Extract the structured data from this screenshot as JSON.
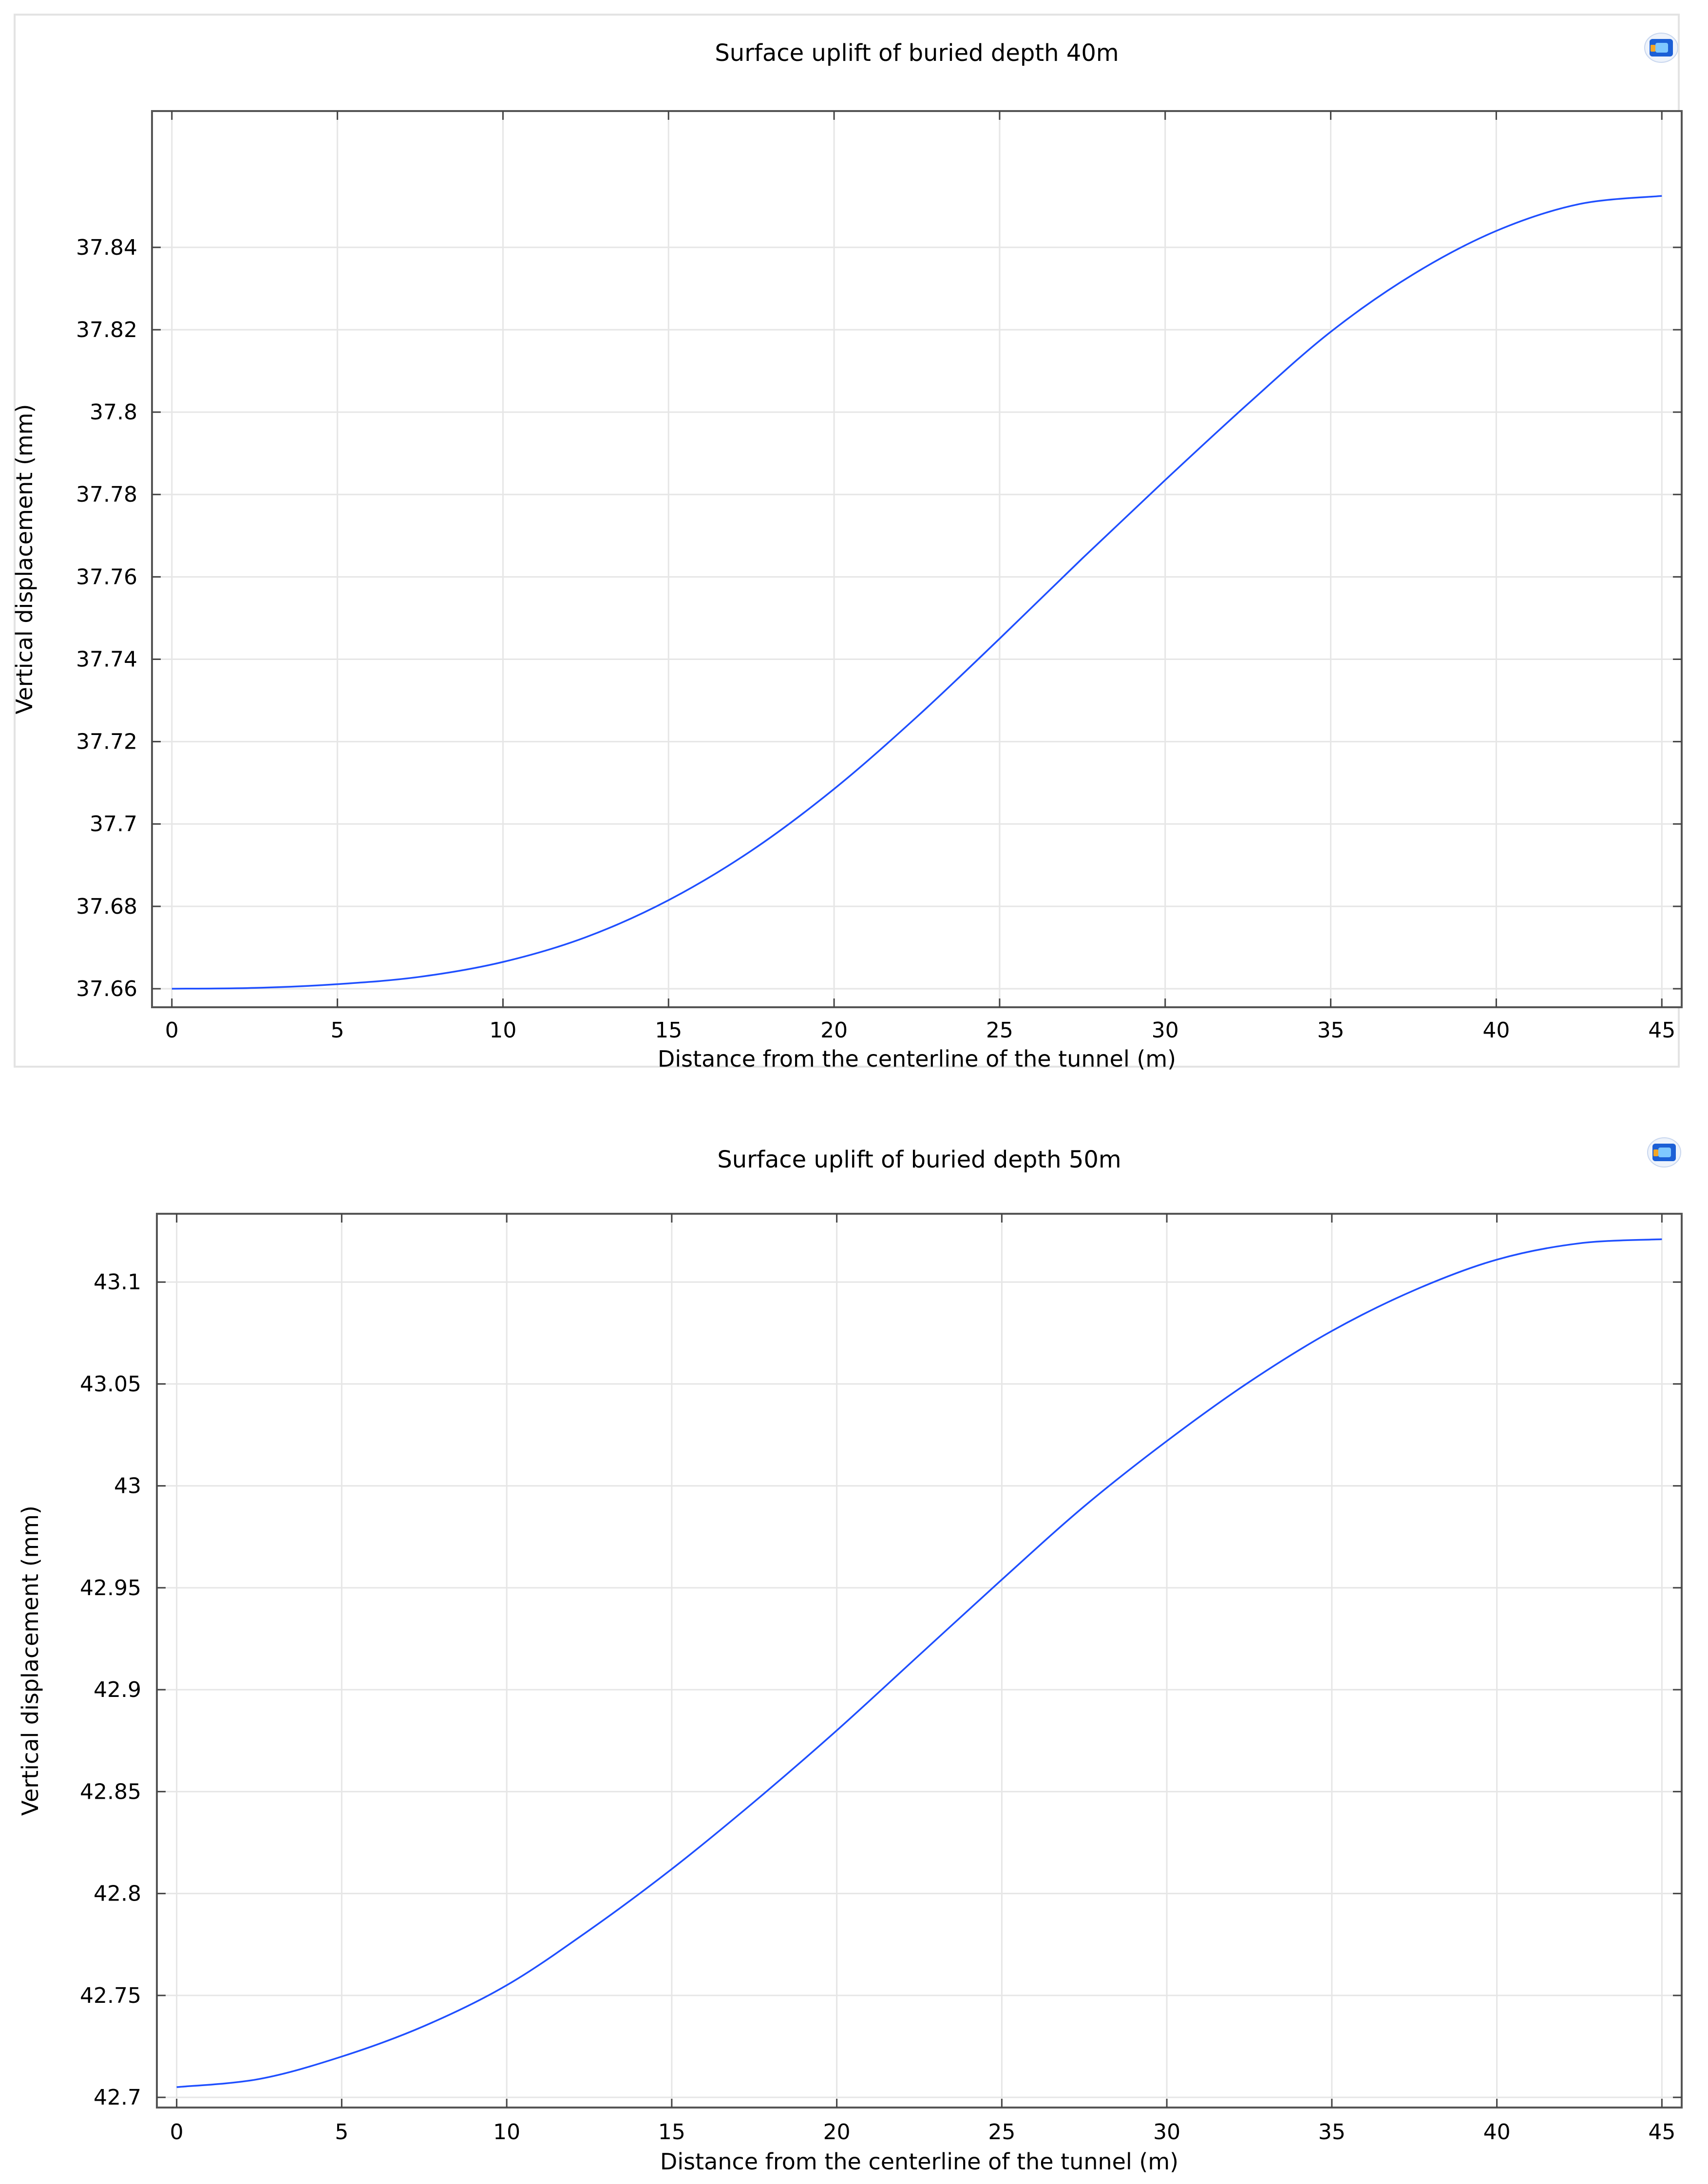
{
  "colors": {
    "line": "#1f4fff",
    "logo_outer": "#1b5fd6",
    "logo_inner": "#f5a623"
  },
  "chart_data": [
    {
      "type": "line",
      "title": "Surface uplift of buried depth 40m",
      "xlabel": "Distance from the centerline of the tunnel (m)",
      "ylabel": "Vertical displacement (mm)",
      "xlim": [
        -0.6,
        45.6
      ],
      "ylim": [
        37.6555,
        37.8731
      ],
      "x_ticks": [
        0,
        5,
        10,
        15,
        20,
        25,
        30,
        35,
        40,
        45
      ],
      "x_tick_labels": [
        "0",
        "5",
        "10",
        "15",
        "20",
        "25",
        "30",
        "35",
        "40",
        "45"
      ],
      "y_ticks": [
        37.66,
        37.68,
        37.7,
        37.72,
        37.74,
        37.76,
        37.78,
        37.8,
        37.82,
        37.84
      ],
      "y_tick_labels": [
        "37.66",
        "37.68",
        "37.7",
        "37.72",
        "37.74",
        "37.76",
        "37.78",
        "37.8",
        "37.82",
        "37.84"
      ],
      "grid": true,
      "logo_icon": "comsol-logo-icon",
      "series": [
        {
          "x": [
            0,
            2.5,
            5,
            7.5,
            10,
            12.5,
            15,
            17.5,
            20,
            22.5,
            25,
            27.5,
            30,
            32.5,
            35,
            37.5,
            40,
            42.5,
            45
          ],
          "y": [
            37.66,
            37.6602,
            37.6611,
            37.6629,
            37.6665,
            37.6725,
            37.6815,
            37.6935,
            37.7085,
            37.726,
            37.745,
            37.7645,
            37.7835,
            37.802,
            37.8195,
            37.8335,
            37.844,
            37.8505,
            37.8525
          ]
        }
      ]
    },
    {
      "type": "line",
      "title": "Surface uplift of buried depth 50m",
      "xlabel": "Distance from the centerline of the tunnel (m)",
      "ylabel": "Vertical displacement (mm)",
      "xlim": [
        -0.6,
        45.6
      ],
      "ylim": [
        42.695,
        43.1335
      ],
      "x_ticks": [
        0,
        5,
        10,
        15,
        20,
        25,
        30,
        35,
        40,
        45
      ],
      "x_tick_labels": [
        "0",
        "5",
        "10",
        "15",
        "20",
        "25",
        "30",
        "35",
        "40",
        "45"
      ],
      "y_ticks": [
        42.7,
        42.75,
        42.8,
        42.85,
        42.9,
        42.95,
        43.0,
        43.05,
        43.1
      ],
      "y_tick_labels": [
        "42.7",
        "42.75",
        "42.8",
        "42.85",
        "42.9",
        "42.95",
        "43",
        "43.05",
        "43.1"
      ],
      "grid": true,
      "logo_icon": "comsol-logo-icon",
      "series": [
        {
          "x": [
            0,
            2.5,
            5,
            7.5,
            10,
            12.5,
            15,
            17.5,
            20,
            22.5,
            25,
            27.5,
            30,
            32.5,
            35,
            37.5,
            40,
            42.5,
            45
          ],
          "y": [
            42.705,
            42.709,
            42.72,
            42.735,
            42.755,
            42.782,
            42.812,
            42.845,
            42.88,
            42.917,
            42.954,
            42.99,
            43.022,
            43.051,
            43.076,
            43.096,
            43.111,
            43.119,
            43.121
          ]
        }
      ]
    }
  ]
}
